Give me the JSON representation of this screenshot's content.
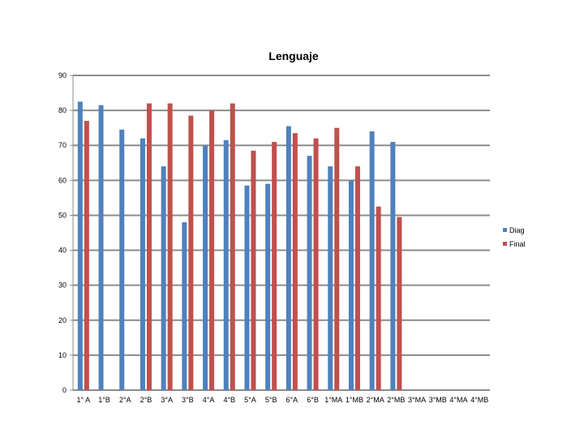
{
  "chart_data": {
    "type": "bar",
    "title": "Lenguaje",
    "xlabel": "",
    "ylabel": "",
    "ylim": [
      0,
      90
    ],
    "yticks": [
      0,
      10,
      20,
      30,
      40,
      50,
      60,
      70,
      80,
      90
    ],
    "grid": true,
    "legend_position": "right",
    "categories": [
      "1° A",
      "1°B",
      "2°A",
      "2°B",
      "3°A",
      "3°B",
      "4°A",
      "4°B",
      "5°A",
      "5°B",
      "6°A",
      "6°B",
      "1°MA",
      "1°MB",
      "2°MA",
      "2°MB",
      "3°MA",
      "3°MB",
      "4°MA",
      "4°MB"
    ],
    "series": [
      {
        "name": "Diag",
        "color": "#4f81bd",
        "values": [
          82.5,
          81.5,
          74.5,
          72,
          64,
          48,
          70,
          71.5,
          58.5,
          59,
          75.5,
          67,
          64,
          60,
          74,
          71,
          null,
          null,
          null,
          null
        ]
      },
      {
        "name": "Final",
        "color": "#c0504d",
        "values": [
          77,
          null,
          null,
          82,
          82,
          78.5,
          80,
          82,
          68.5,
          71,
          73.5,
          72,
          75,
          64,
          52.5,
          49.5,
          null,
          null,
          null,
          null
        ]
      }
    ]
  }
}
